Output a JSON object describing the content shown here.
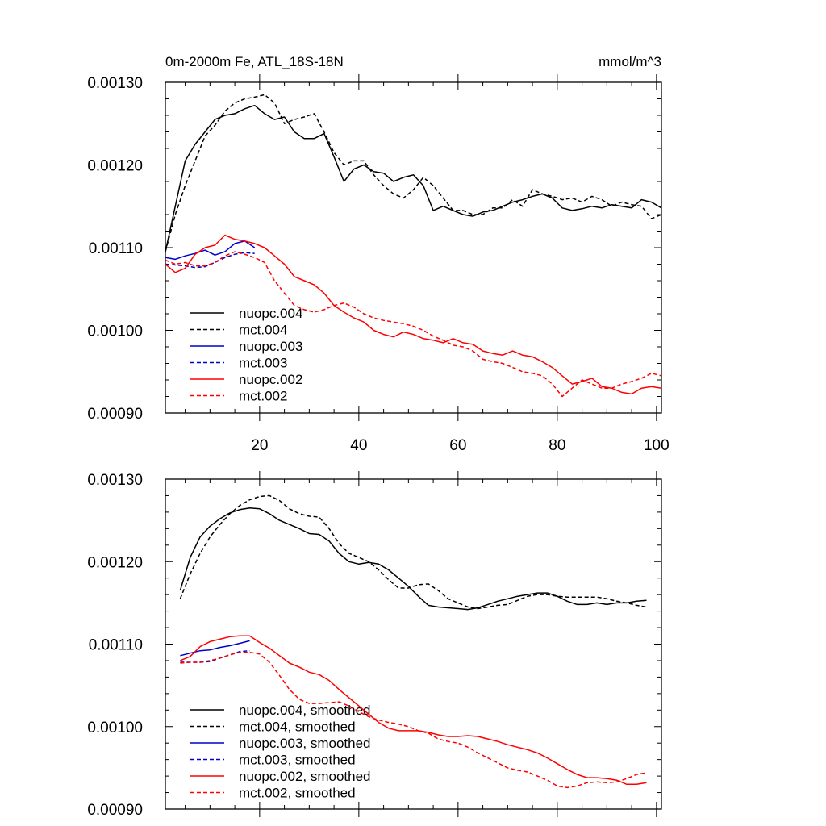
{
  "figure": {
    "title_left": "0m-2000m Fe, ATL_18S-18N",
    "title_right": "mmol/m^3"
  },
  "chart_data": [
    {
      "type": "line",
      "title": "0m-2000m Fe, ATL_18S-18N",
      "units": "mmol/m^3",
      "xlim": [
        1,
        101
      ],
      "ylim": [
        0.0009,
        0.0013
      ],
      "x_ticks": [
        20,
        40,
        60,
        80,
        100
      ],
      "y_ticks": [
        "0.00090",
        "0.00100",
        "0.00110",
        "0.00120",
        "0.00130"
      ],
      "legend_position": "bottom-left",
      "series": [
        {
          "name": "nuopc.004",
          "color": "#000000",
          "dash": "solid",
          "x": [
            1,
            3,
            5,
            7,
            9,
            11,
            13,
            15,
            17,
            19,
            21,
            23,
            25,
            27,
            29,
            31,
            33,
            35,
            37,
            39,
            41,
            43,
            45,
            47,
            49,
            51,
            53,
            55,
            57,
            59,
            61,
            63,
            65,
            67,
            69,
            71,
            73,
            75,
            77,
            79,
            81,
            83,
            85,
            87,
            89,
            91,
            93,
            95,
            97,
            99,
            101
          ],
          "y": [
            0.001095,
            0.00115,
            0.001205,
            0.001225,
            0.00124,
            0.001255,
            0.00126,
            0.001262,
            0.001268,
            0.001272,
            0.001262,
            0.001255,
            0.001258,
            0.00124,
            0.001232,
            0.001232,
            0.001238,
            0.00121,
            0.00118,
            0.001195,
            0.0012,
            0.001192,
            0.00119,
            0.00118,
            0.001185,
            0.001188,
            0.001175,
            0.001145,
            0.00115,
            0.001145,
            0.00114,
            0.001138,
            0.001143,
            0.001145,
            0.00115,
            0.001155,
            0.001158,
            0.001162,
            0.001165,
            0.00116,
            0.001148,
            0.001145,
            0.001147,
            0.00115,
            0.001148,
            0.001152,
            0.00115,
            0.001148,
            0.001158,
            0.001155,
            0.001148
          ]
        },
        {
          "name": "mct.004",
          "color": "#000000",
          "dash": "dashed",
          "x": [
            1,
            3,
            5,
            7,
            9,
            11,
            13,
            15,
            17,
            19,
            21,
            23,
            25,
            27,
            29,
            31,
            33,
            35,
            37,
            39,
            41,
            43,
            45,
            47,
            49,
            51,
            53,
            55,
            57,
            59,
            61,
            63,
            65,
            67,
            69,
            71,
            73,
            75,
            77,
            79,
            81,
            83,
            85,
            87,
            89,
            91,
            93,
            95,
            97,
            99,
            101
          ],
          "y": [
            0.001095,
            0.00114,
            0.001175,
            0.001205,
            0.001235,
            0.001248,
            0.001265,
            0.001275,
            0.00128,
            0.001282,
            0.001285,
            0.001275,
            0.00125,
            0.001255,
            0.001258,
            0.001262,
            0.00124,
            0.001215,
            0.0012,
            0.001205,
            0.001205,
            0.001188,
            0.001175,
            0.001165,
            0.00116,
            0.00117,
            0.001185,
            0.001175,
            0.00116,
            0.001145,
            0.001145,
            0.00114,
            0.00114,
            0.001148,
            0.001148,
            0.001158,
            0.00115,
            0.00117,
            0.001165,
            0.001162,
            0.001158,
            0.00116,
            0.001155,
            0.001162,
            0.001158,
            0.00115,
            0.001155,
            0.001152,
            0.00115,
            0.001135,
            0.00114
          ]
        },
        {
          "name": "nuopc.003",
          "color": "#0000cc",
          "dash": "solid",
          "x": [
            1,
            3,
            5,
            7,
            9,
            11,
            13,
            15,
            17,
            19
          ],
          "y": [
            0.001088,
            0.001086,
            0.00109,
            0.001093,
            0.001097,
            0.001091,
            0.001095,
            0.001105,
            0.001108,
            0.0011
          ]
        },
        {
          "name": "mct.003",
          "color": "#0000cc",
          "dash": "dashed",
          "x": [
            1,
            3,
            5,
            7,
            9,
            11,
            13,
            15,
            17,
            19
          ],
          "y": [
            0.00108,
            0.001079,
            0.001078,
            0.001076,
            0.001077,
            0.001082,
            0.001088,
            0.001092,
            0.001094,
            0.001093
          ]
        },
        {
          "name": "nuopc.002",
          "color": "#ff0000",
          "dash": "solid",
          "x": [
            1,
            3,
            5,
            7,
            9,
            11,
            13,
            15,
            17,
            19,
            21,
            23,
            25,
            27,
            29,
            31,
            33,
            35,
            37,
            39,
            41,
            43,
            45,
            47,
            49,
            51,
            53,
            55,
            57,
            59,
            61,
            63,
            65,
            67,
            69,
            71,
            73,
            75,
            77,
            79,
            81,
            83,
            85,
            87,
            89,
            91,
            93,
            95,
            97,
            99,
            101
          ],
          "y": [
            0.00108,
            0.00107,
            0.001075,
            0.001092,
            0.0011,
            0.001103,
            0.001115,
            0.00111,
            0.001108,
            0.001105,
            0.0011,
            0.00109,
            0.00108,
            0.001065,
            0.00106,
            0.001055,
            0.001045,
            0.00103,
            0.001022,
            0.001015,
            0.00101,
            0.001,
            0.000995,
            0.000992,
            0.000998,
            0.000995,
            0.00099,
            0.000988,
            0.000985,
            0.00099,
            0.000985,
            0.000983,
            0.000975,
            0.000972,
            0.00097,
            0.000975,
            0.00097,
            0.000968,
            0.000962,
            0.000955,
            0.000945,
            0.000935,
            0.000938,
            0.000942,
            0.000932,
            0.00093,
            0.000925,
            0.000923,
            0.00093,
            0.000932,
            0.00093
          ]
        },
        {
          "name": "mct.002",
          "color": "#ff0000",
          "dash": "dashed",
          "x": [
            1,
            3,
            5,
            7,
            9,
            11,
            13,
            15,
            17,
            19,
            21,
            23,
            25,
            27,
            29,
            31,
            33,
            35,
            37,
            39,
            41,
            43,
            45,
            47,
            49,
            51,
            53,
            55,
            57,
            59,
            61,
            63,
            65,
            67,
            69,
            71,
            73,
            75,
            77,
            79,
            81,
            83,
            85,
            87,
            89,
            91,
            93,
            95,
            97,
            99,
            101
          ],
          "y": [
            0.001085,
            0.00108,
            0.001082,
            0.001078,
            0.001078,
            0.001082,
            0.00109,
            0.001095,
            0.001092,
            0.001088,
            0.001082,
            0.00106,
            0.001045,
            0.00103,
            0.001025,
            0.001022,
            0.001025,
            0.00103,
            0.001033,
            0.001028,
            0.00102,
            0.001015,
            0.001012,
            0.00101,
            0.001008,
            0.001005,
            0.001,
            0.000993,
            0.000988,
            0.000982,
            0.00098,
            0.000975,
            0.000965,
            0.000962,
            0.00096,
            0.000955,
            0.00095,
            0.000948,
            0.000945,
            0.000935,
            0.00092,
            0.00093,
            0.00094,
            0.000935,
            0.00093,
            0.00093,
            0.000935,
            0.000938,
            0.000942,
            0.000948,
            0.000945
          ]
        }
      ]
    },
    {
      "type": "line",
      "xlim": [
        1,
        101
      ],
      "ylim": [
        0.0009,
        0.0013
      ],
      "x_ticks": [
        20,
        40,
        60,
        80,
        100
      ],
      "y_ticks": [
        "0.00090",
        "0.00100",
        "0.00110",
        "0.00120",
        "0.00130"
      ],
      "legend_position": "bottom-left",
      "series": [
        {
          "name": "nuopc.004, smoothed",
          "color": "#000000",
          "dash": "solid",
          "x": [
            4,
            6,
            8,
            10,
            12,
            14,
            16,
            18,
            20,
            22,
            24,
            26,
            28,
            30,
            32,
            34,
            36,
            38,
            40,
            42,
            44,
            46,
            48,
            50,
            52,
            54,
            56,
            58,
            60,
            62,
            64,
            66,
            68,
            70,
            72,
            74,
            76,
            78,
            80,
            82,
            84,
            86,
            88,
            90,
            92,
            94,
            96,
            98
          ],
          "y": [
            0.001165,
            0.001205,
            0.00123,
            0.001243,
            0.001252,
            0.001259,
            0.001263,
            0.001265,
            0.001264,
            0.001258,
            0.00125,
            0.001245,
            0.00124,
            0.001234,
            0.001233,
            0.001225,
            0.00121,
            0.0012,
            0.001197,
            0.001199,
            0.001197,
            0.00119,
            0.00118,
            0.00117,
            0.001158,
            0.001147,
            0.001145,
            0.001144,
            0.001143,
            0.001142,
            0.001144,
            0.001148,
            0.001152,
            0.001155,
            0.001158,
            0.00116,
            0.001162,
            0.001162,
            0.001158,
            0.001152,
            0.001148,
            0.001148,
            0.00115,
            0.001148,
            0.00115,
            0.00115,
            0.001152,
            0.001153
          ]
        },
        {
          "name": "mct.004, smoothed",
          "color": "#000000",
          "dash": "dashed",
          "x": [
            4,
            6,
            8,
            10,
            12,
            14,
            16,
            18,
            20,
            22,
            24,
            26,
            28,
            30,
            32,
            34,
            36,
            38,
            40,
            42,
            44,
            46,
            48,
            50,
            52,
            54,
            56,
            58,
            60,
            62,
            64,
            66,
            68,
            70,
            72,
            74,
            76,
            78,
            80,
            82,
            84,
            86,
            88,
            90,
            92,
            94,
            96,
            98
          ],
          "y": [
            0.001155,
            0.001185,
            0.00121,
            0.00123,
            0.001245,
            0.001258,
            0.001268,
            0.001275,
            0.001279,
            0.00128,
            0.001274,
            0.001264,
            0.001258,
            0.001255,
            0.001254,
            0.00124,
            0.001222,
            0.00121,
            0.001205,
            0.0012,
            0.00119,
            0.001178,
            0.001168,
            0.001168,
            0.001172,
            0.001173,
            0.001165,
            0.001155,
            0.00115,
            0.001145,
            0.001143,
            0.001145,
            0.001147,
            0.001148,
            0.001153,
            0.001158,
            0.00116,
            0.00116,
            0.001158,
            0.001157,
            0.001157,
            0.001157,
            0.001157,
            0.001155,
            0.001152,
            0.00115,
            0.001147,
            0.001145
          ]
        },
        {
          "name": "nuopc.003, smoothed",
          "color": "#0000cc",
          "dash": "solid",
          "x": [
            4,
            6,
            8,
            10,
            12,
            14,
            16,
            18
          ],
          "y": [
            0.001086,
            0.001089,
            0.001092,
            0.001093,
            0.001096,
            0.001098,
            0.001101,
            0.001104
          ]
        },
        {
          "name": "mct.003, smoothed",
          "color": "#0000cc",
          "dash": "dashed",
          "x": [
            4,
            6,
            8,
            10,
            12,
            14,
            16,
            18
          ],
          "y": [
            0.001078,
            0.001078,
            0.001078,
            0.001079,
            0.001083,
            0.001087,
            0.001091,
            0.001092
          ]
        },
        {
          "name": "nuopc.002, smoothed",
          "color": "#ff0000",
          "dash": "solid",
          "x": [
            4,
            6,
            8,
            10,
            12,
            14,
            16,
            18,
            20,
            22,
            24,
            26,
            28,
            30,
            32,
            34,
            36,
            38,
            40,
            42,
            44,
            46,
            48,
            50,
            52,
            54,
            56,
            58,
            60,
            62,
            64,
            66,
            68,
            70,
            72,
            74,
            76,
            78,
            80,
            82,
            84,
            86,
            88,
            90,
            92,
            94,
            96,
            98
          ],
          "y": [
            0.00108,
            0.001085,
            0.001097,
            0.001103,
            0.001106,
            0.001109,
            0.00111,
            0.00111,
            0.001102,
            0.001095,
            0.001086,
            0.001077,
            0.001072,
            0.001066,
            0.001063,
            0.001056,
            0.001045,
            0.001035,
            0.001025,
            0.001015,
            0.001005,
            0.000998,
            0.000995,
            0.000995,
            0.000995,
            0.000993,
            0.00099,
            0.000988,
            0.000988,
            0.000989,
            0.000988,
            0.000985,
            0.000982,
            0.000978,
            0.000975,
            0.000972,
            0.000968,
            0.000962,
            0.000955,
            0.000948,
            0.000942,
            0.000938,
            0.000938,
            0.000937,
            0.000935,
            0.00093,
            0.00093,
            0.000932
          ]
        },
        {
          "name": "mct.002, smoothed",
          "color": "#ff0000",
          "dash": "dashed",
          "x": [
            4,
            6,
            8,
            10,
            12,
            14,
            16,
            18,
            20,
            22,
            24,
            26,
            28,
            30,
            32,
            34,
            36,
            38,
            40,
            42,
            44,
            46,
            48,
            50,
            52,
            54,
            56,
            58,
            60,
            62,
            64,
            66,
            68,
            70,
            72,
            74,
            76,
            78,
            80,
            82,
            84,
            86,
            88,
            90,
            92,
            94,
            96,
            98
          ],
          "y": [
            0.001077,
            0.001078,
            0.001078,
            0.00108,
            0.001083,
            0.001087,
            0.00109,
            0.00109,
            0.001088,
            0.001078,
            0.001062,
            0.001045,
            0.001033,
            0.001028,
            0.001028,
            0.001029,
            0.00103,
            0.001025,
            0.001018,
            0.001012,
            0.001008,
            0.001005,
            0.001003,
            0.001,
            0.000995,
            0.000992,
            0.000985,
            0.000982,
            0.00098,
            0.000975,
            0.000968,
            0.000962,
            0.000956,
            0.00095,
            0.000947,
            0.000945,
            0.00094,
            0.000935,
            0.000928,
            0.000926,
            0.000928,
            0.000932,
            0.000933,
            0.000932,
            0.000933,
            0.000937,
            0.000942,
            0.000944
          ]
        }
      ]
    }
  ]
}
